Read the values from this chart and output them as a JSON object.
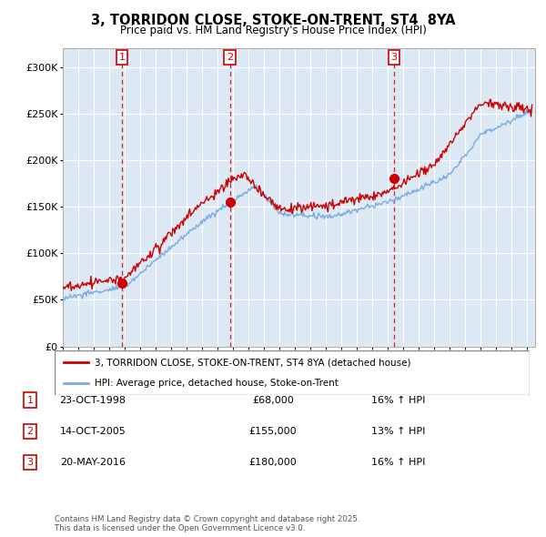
{
  "title": "3, TORRIDON CLOSE, STOKE-ON-TRENT, ST4  8YA",
  "subtitle": "Price paid vs. HM Land Registry's House Price Index (HPI)",
  "ylim": [
    0,
    320000
  ],
  "yticks": [
    0,
    50000,
    100000,
    150000,
    200000,
    250000,
    300000
  ],
  "ytick_labels": [
    "£0",
    "£50K",
    "£100K",
    "£150K",
    "£200K",
    "£250K",
    "£300K"
  ],
  "sale_color": "#cc0000",
  "hpi_color": "#7aace0",
  "chart_bg": "#dce9f5",
  "sale_dates": [
    1998.81,
    2005.79,
    2016.38
  ],
  "sale_prices": [
    68000,
    155000,
    180000
  ],
  "marker_labels": [
    "1",
    "2",
    "3"
  ],
  "vline_color": "#cc0000",
  "legend_sale_label": "3, TORRIDON CLOSE, STOKE-ON-TRENT, ST4 8YA (detached house)",
  "legend_hpi_label": "HPI: Average price, detached house, Stoke-on-Trent",
  "table_data": [
    [
      "1",
      "23-OCT-1998",
      "£68,000",
      "16% ↑ HPI"
    ],
    [
      "2",
      "14-OCT-2005",
      "£155,000",
      "13% ↑ HPI"
    ],
    [
      "3",
      "20-MAY-2016",
      "£180,000",
      "16% ↑ HPI"
    ]
  ],
  "footnote": "Contains HM Land Registry data © Crown copyright and database right 2025.\nThis data is licensed under the Open Government Licence v3.0.",
  "background_color": "#ffffff",
  "grid_color": "#ffffff",
  "title_fontsize": 10.5,
  "subtitle_fontsize": 8.5
}
